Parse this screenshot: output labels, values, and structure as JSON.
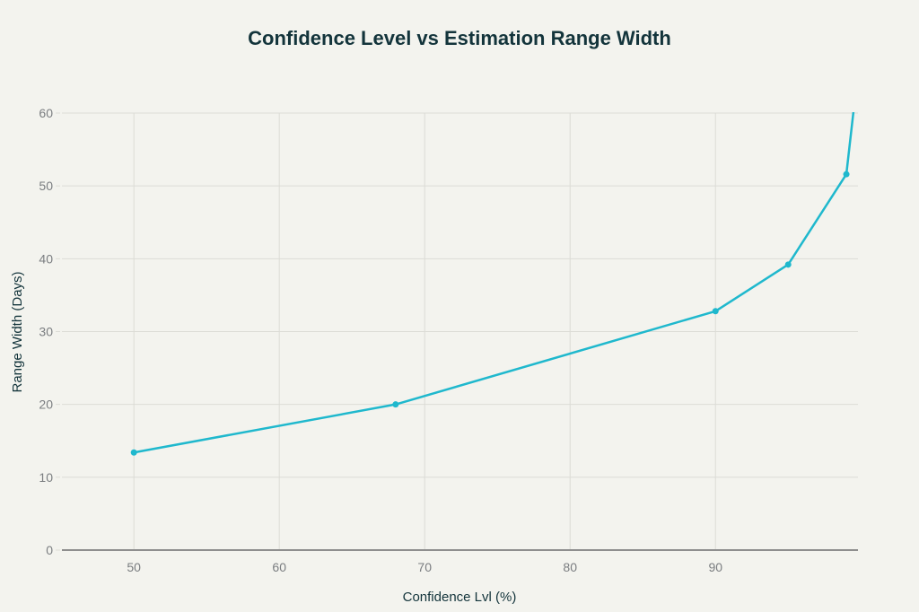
{
  "chart_data": {
    "type": "line",
    "title": "Confidence Level vs Estimation Range Width",
    "xlabel": "Confidence Lvl (%)",
    "ylabel": "Range Width (Days)",
    "xlim": [
      45.05,
      99.8
    ],
    "ylim": [
      0,
      60
    ],
    "xticks": [
      50,
      60,
      70,
      80,
      90
    ],
    "yticks": [
      0,
      10,
      20,
      30,
      40,
      50,
      60
    ],
    "grid": true,
    "legend": "none",
    "series": [
      {
        "name": "Range Width",
        "color": "#1FB8CD",
        "x": [
          50,
          68,
          90,
          95,
          99,
          99.9
        ],
        "y": [
          13.4,
          20,
          32.8,
          39.2,
          51.6,
          67.4
        ],
        "markers": [
          true,
          true,
          true,
          true,
          true,
          false
        ]
      }
    ]
  }
}
